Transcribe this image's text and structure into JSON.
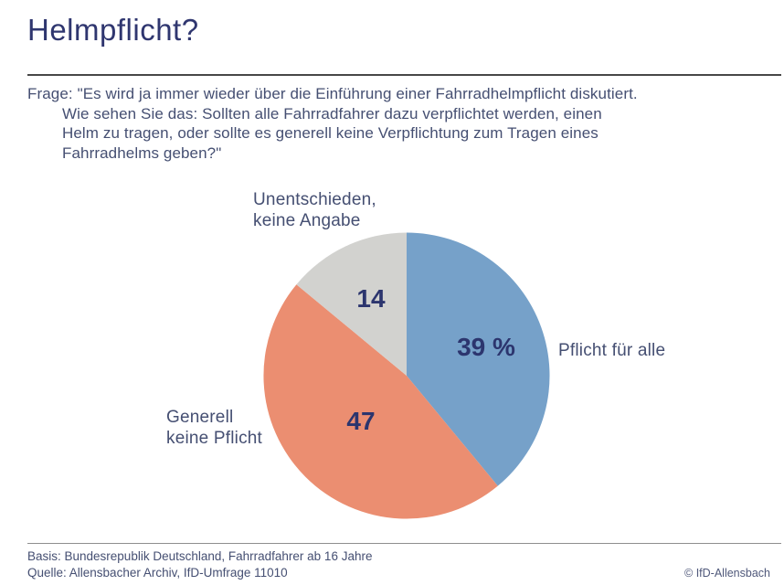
{
  "page": {
    "title": "Helmpflicht?",
    "question": {
      "label": "Frage:",
      "lines": [
        "\"Es wird ja immer wieder über die Einführung einer Fahrradhelmpflicht diskutiert.",
        "Wie sehen Sie das: Sollten alle Fahrradfahrer dazu verpflichtet werden, einen",
        "Helm zu tragen, oder sollte es generell keine Verpflichtung zum Tragen eines",
        "Fahrradhelms geben?\""
      ]
    },
    "footer": {
      "basis": "Basis: Bundesrepublik Deutschland, Fahrradfahrer ab 16 Jahre",
      "quelle": "Quelle: Allensbacher Archiv, IfD-Umfrage 11010",
      "copyright": "© IfD-Allensbach"
    }
  },
  "chart_data": {
    "type": "pie",
    "title": "Helmpflicht?",
    "unit": "percent",
    "slices": [
      {
        "label": "Pflicht für alle",
        "label_lines": [
          "Pflicht für alle"
        ],
        "value": 39,
        "display_value": "39 %",
        "color": "#76a1c9"
      },
      {
        "label": "Generell keine Pflicht",
        "label_lines": [
          "Generell",
          "keine Pflicht"
        ],
        "value": 47,
        "display_value": "47",
        "color": "#eb8e71"
      },
      {
        "label": "Unentschieden, keine Angabe",
        "label_lines": [
          "Unentschieden,",
          "keine Angabe"
        ],
        "value": 14,
        "display_value": "14",
        "color": "#d2d2cf"
      }
    ],
    "layout": {
      "start_angle_deg": 0,
      "direction": "clockwise",
      "center": [
        445,
        411
      ],
      "radius": 157,
      "value_label_radius_frac": [
        0.59,
        0.45,
        0.59
      ],
      "legend": "none",
      "value_label_color": "#2c356e"
    }
  }
}
